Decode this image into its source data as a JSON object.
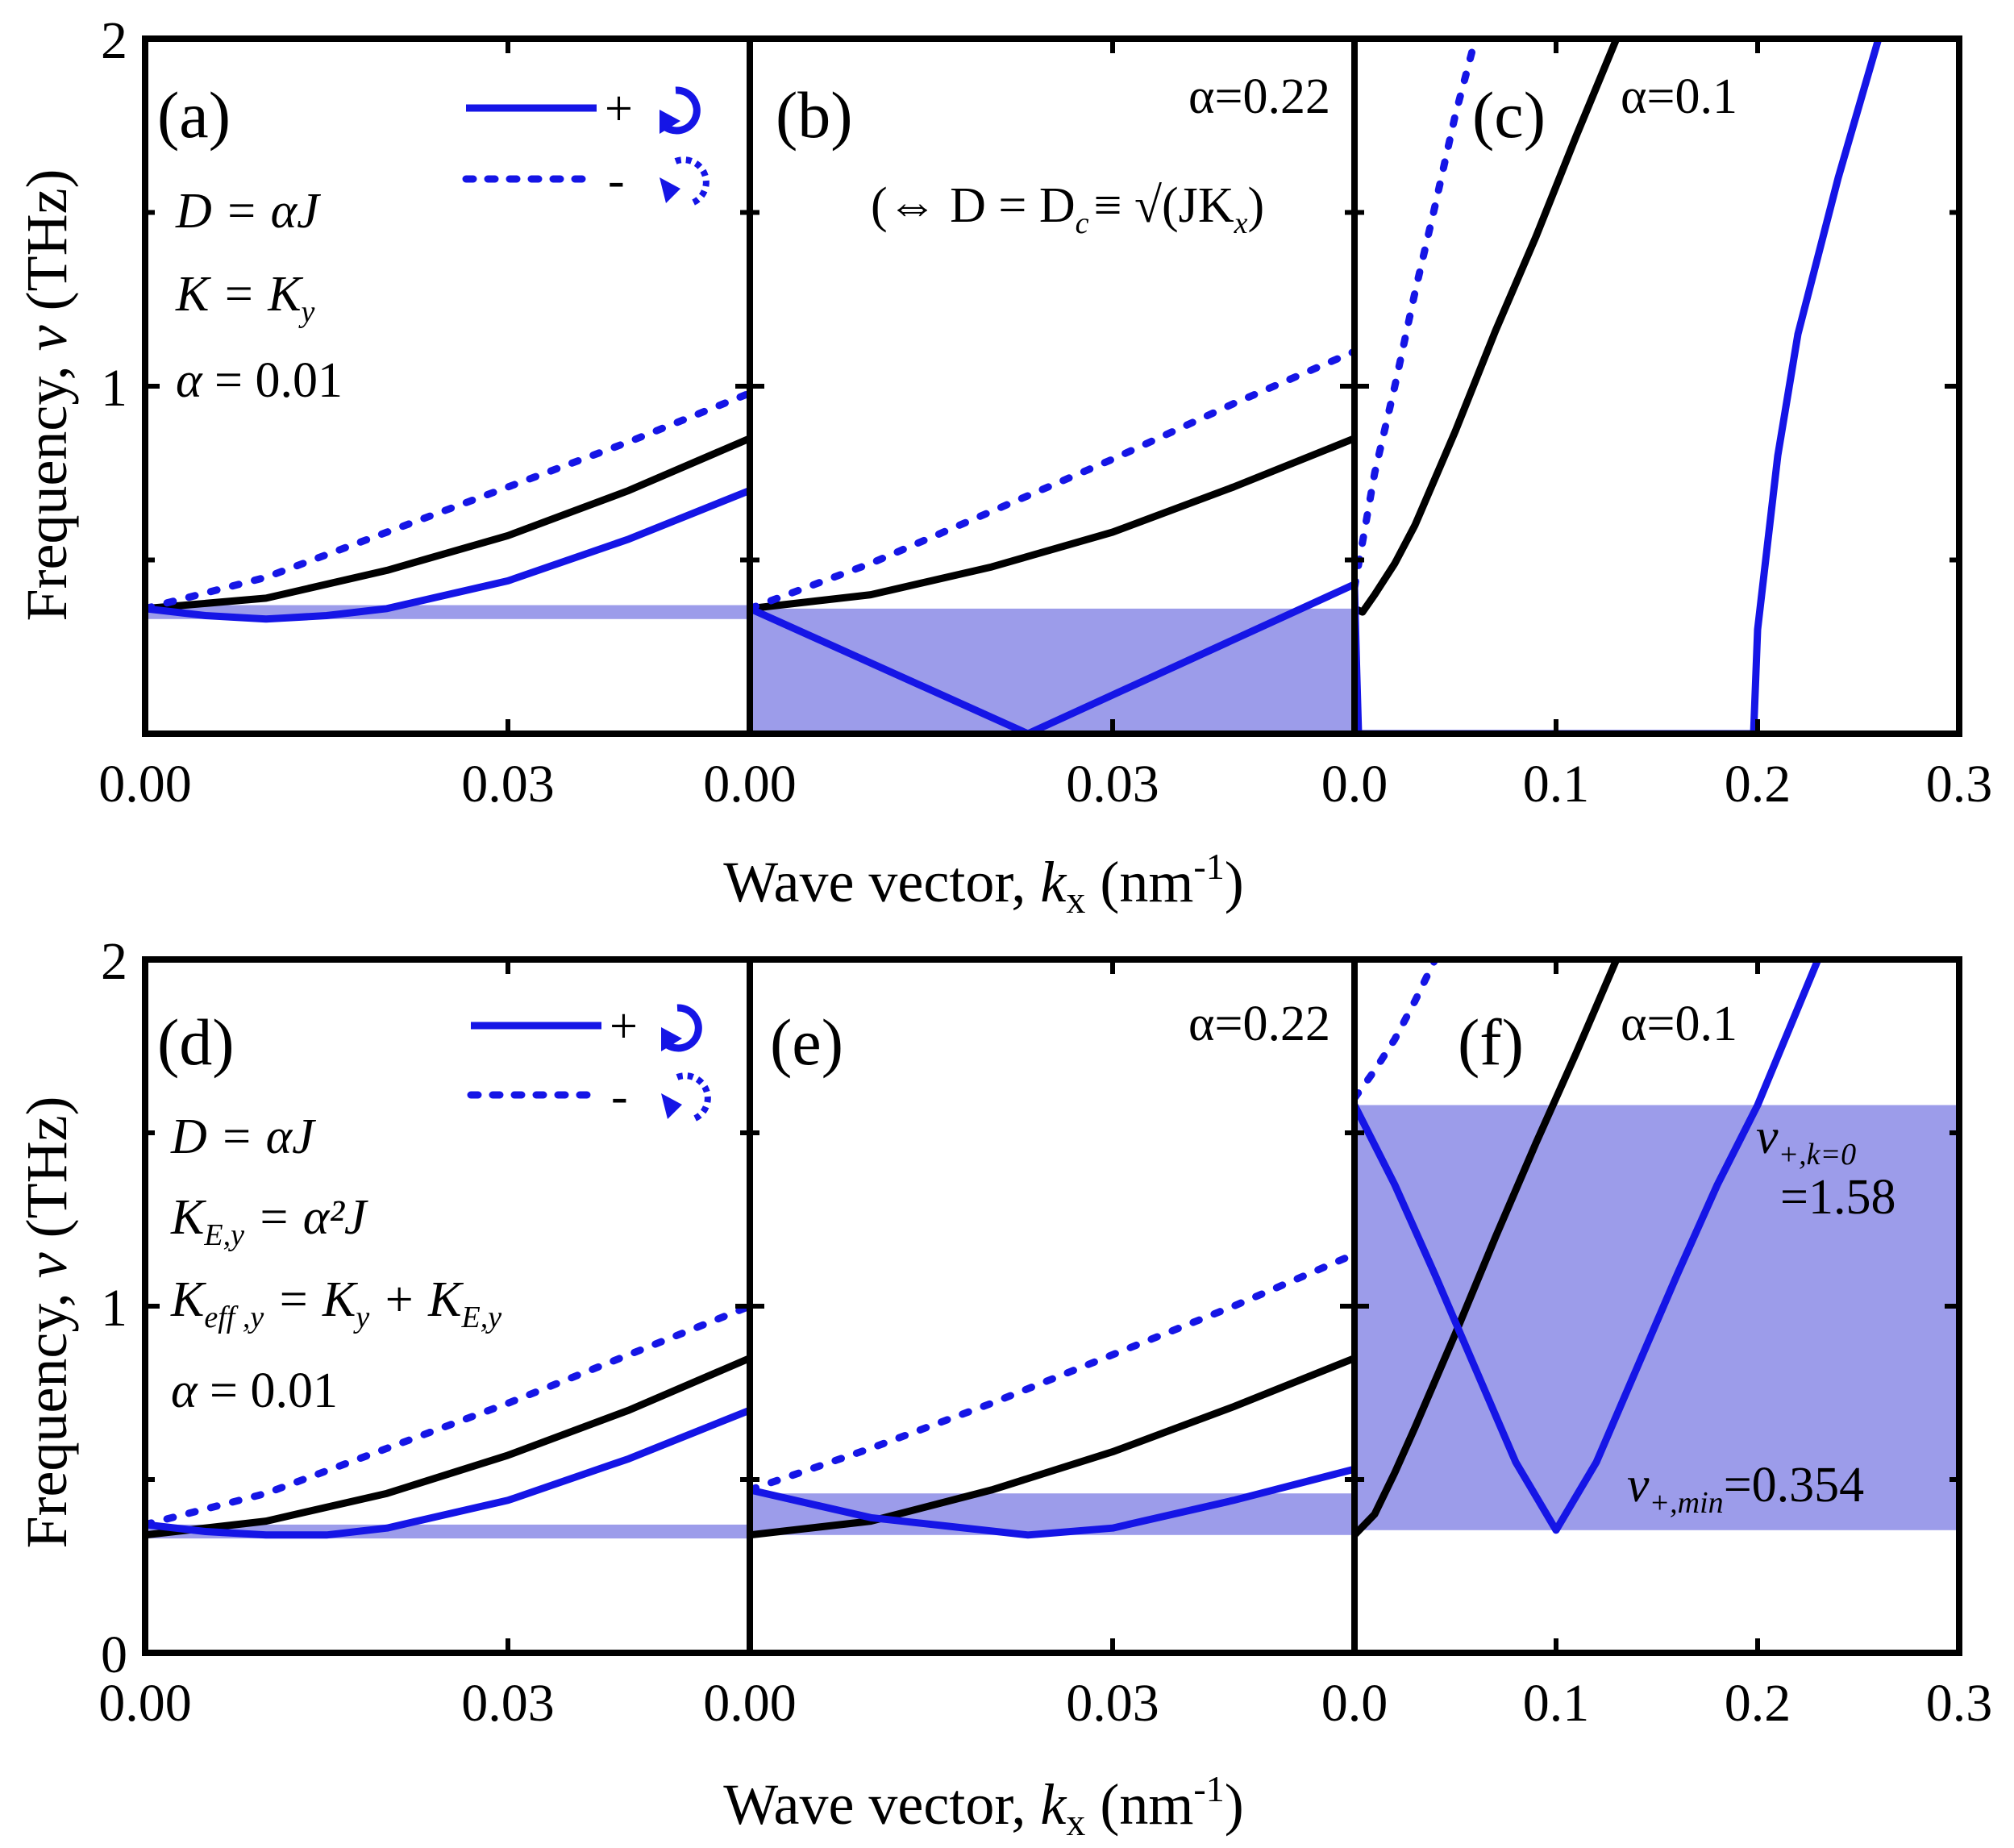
{
  "figure": {
    "ylabel": "Frequency, v (THz)",
    "ylabel_parts": {
      "prefix": "Frequency, ",
      "var": "v",
      "suffix": " (THz)"
    },
    "xlabel_parts": {
      "prefix": "Wave vector, ",
      "var": "k",
      "sub": "x",
      "unit": " (nm",
      "sup": "-1",
      "end": ")"
    },
    "colors": {
      "black": "#000000",
      "blue": "#1515e6",
      "shade": "#4a4ad8"
    }
  },
  "legend": {
    "plus": "+",
    "minus": "-"
  },
  "chart_data": [
    {
      "id": "a",
      "label": "(a)",
      "type": "line",
      "row": "top",
      "col": 0,
      "xlim": [
        0,
        0.05
      ],
      "ylim": [
        0,
        2
      ],
      "xticks": [
        {
          "v": 0,
          "t": "0.00"
        },
        {
          "v": 0.03,
          "t": "0.03"
        }
      ],
      "yticks": [
        {
          "v": 1,
          "t": "1"
        },
        {
          "v": 2,
          "t": "2"
        }
      ],
      "annotations": [
        "D = αJ",
        "K = K_y",
        "α = 0.01"
      ],
      "shaded_band": [
        0.33,
        0.37
      ],
      "series": [
        {
          "name": "black",
          "style": "solid",
          "color": "#000000",
          "x": [
            0,
            0.01,
            0.02,
            0.03,
            0.04,
            0.05
          ],
          "y": [
            0.36,
            0.39,
            0.47,
            0.57,
            0.7,
            0.85
          ]
        },
        {
          "name": "+",
          "style": "solid",
          "color": "#1515e6",
          "x": [
            0,
            0.005,
            0.01,
            0.015,
            0.02,
            0.03,
            0.04,
            0.05
          ],
          "y": [
            0.36,
            0.34,
            0.33,
            0.34,
            0.36,
            0.44,
            0.56,
            0.7
          ]
        },
        {
          "name": "-",
          "style": "dotted",
          "color": "#1515e6",
          "x": [
            0,
            0.01,
            0.02,
            0.03,
            0.04,
            0.05
          ],
          "y": [
            0.36,
            0.45,
            0.58,
            0.71,
            0.84,
            0.98
          ]
        }
      ]
    },
    {
      "id": "b",
      "label": "(b)",
      "type": "line",
      "row": "top",
      "col": 1,
      "xlim": [
        0,
        0.05
      ],
      "ylim": [
        0,
        2
      ],
      "xticks": [
        {
          "v": 0,
          "t": "0.00"
        },
        {
          "v": 0.03,
          "t": "0.03"
        }
      ],
      "alpha_text": "α=0.22",
      "note_text": "(⇔ D = D",
      "note_sub": "c",
      "note_rest": "≡ √(JK",
      "note_sub2": "x",
      "note_end": ")",
      "shaded_band": [
        0,
        0.36
      ],
      "series": [
        {
          "name": "black",
          "style": "solid",
          "color": "#000000",
          "x": [
            0,
            0.01,
            0.02,
            0.03,
            0.04,
            0.05
          ],
          "y": [
            0.36,
            0.4,
            0.48,
            0.58,
            0.71,
            0.85
          ]
        },
        {
          "name": "+",
          "style": "solid",
          "color": "#1515e6",
          "x": [
            0,
            0.023,
            0.05
          ],
          "y": [
            0.36,
            0.0,
            0.43
          ]
        },
        {
          "name": "-",
          "style": "dotted",
          "color": "#1515e6",
          "x": [
            0,
            0.01,
            0.02,
            0.03,
            0.04,
            0.05
          ],
          "y": [
            0.36,
            0.49,
            0.64,
            0.79,
            0.95,
            1.1
          ]
        }
      ]
    },
    {
      "id": "c",
      "label": "(c)",
      "type": "line",
      "row": "top",
      "col": 2,
      "xlim": [
        0,
        0.3
      ],
      "ylim": [
        0,
        2
      ],
      "xticks": [
        {
          "v": 0,
          "t": "0.0"
        },
        {
          "v": 0.1,
          "t": "0.1"
        },
        {
          "v": 0.2,
          "t": "0.2"
        },
        {
          "v": 0.3,
          "t": "0.3"
        }
      ],
      "alpha_text": "α=0.1",
      "shaded_band": null,
      "series": [
        {
          "name": "black",
          "style": "solid",
          "color": "#000000",
          "x": [
            0,
            0.004,
            0.01,
            0.02,
            0.03,
            0.05,
            0.07,
            0.09,
            0.11,
            0.13
          ],
          "y": [
            0.36,
            0.35,
            0.4,
            0.49,
            0.6,
            0.87,
            1.16,
            1.43,
            1.72,
            2.0
          ]
        },
        {
          "name": "+",
          "style": "solid",
          "color": "#1515e6",
          "x": [
            0,
            0.001,
            0.002,
            0.1,
            0.198,
            0.2,
            0.21,
            0.22,
            0.24,
            0.26
          ],
          "y": [
            0.42,
            0.2,
            0.0,
            0.0,
            0.0,
            0.3,
            0.8,
            1.15,
            1.6,
            2.0
          ]
        },
        {
          "name": "-",
          "style": "dotted",
          "color": "#1515e6",
          "x": [
            0,
            0.01,
            0.02,
            0.03,
            0.04,
            0.05,
            0.06
          ],
          "y": [
            0.42,
            0.75,
            1.0,
            1.27,
            1.52,
            1.78,
            2.0
          ]
        }
      ]
    },
    {
      "id": "d",
      "label": "(d)",
      "type": "line",
      "row": "bottom",
      "col": 0,
      "xlim": [
        0,
        0.05
      ],
      "ylim": [
        0,
        2
      ],
      "xticks": [
        {
          "v": 0,
          "t": "0.00"
        },
        {
          "v": 0.03,
          "t": "0.03"
        }
      ],
      "yticks": [
        {
          "v": 0,
          "t": "0"
        },
        {
          "v": 1,
          "t": "1"
        },
        {
          "v": 2,
          "t": "2"
        }
      ],
      "annotations": [
        "D = αJ",
        "K_E,y = α²J",
        "K_eff,y = K_y + K_E,y",
        "α = 0.01"
      ],
      "shaded_band": [
        0.33,
        0.37
      ],
      "series": [
        {
          "name": "black",
          "style": "solid",
          "color": "#000000",
          "x": [
            0,
            0.01,
            0.02,
            0.03,
            0.04,
            0.05
          ],
          "y": [
            0.34,
            0.38,
            0.46,
            0.57,
            0.7,
            0.85
          ]
        },
        {
          "name": "+",
          "style": "solid",
          "color": "#1515e6",
          "x": [
            0,
            0.005,
            0.01,
            0.015,
            0.02,
            0.03,
            0.04,
            0.05
          ],
          "y": [
            0.37,
            0.35,
            0.34,
            0.34,
            0.36,
            0.44,
            0.56,
            0.7
          ]
        },
        {
          "name": "-",
          "style": "dotted",
          "color": "#1515e6",
          "x": [
            0,
            0.01,
            0.02,
            0.03,
            0.04,
            0.05
          ],
          "y": [
            0.37,
            0.46,
            0.59,
            0.72,
            0.86,
            1.0
          ]
        }
      ]
    },
    {
      "id": "e",
      "label": "(e)",
      "type": "line",
      "row": "bottom",
      "col": 1,
      "xlim": [
        0,
        0.05
      ],
      "ylim": [
        0,
        2
      ],
      "xticks": [
        {
          "v": 0,
          "t": "0.00"
        },
        {
          "v": 0.03,
          "t": "0.03"
        }
      ],
      "alpha_text": "α=0.22",
      "shaded_band": [
        0.34,
        0.46
      ],
      "series": [
        {
          "name": "black",
          "style": "solid",
          "color": "#000000",
          "x": [
            0,
            0.01,
            0.02,
            0.03,
            0.04,
            0.05
          ],
          "y": [
            0.34,
            0.38,
            0.47,
            0.58,
            0.71,
            0.85
          ]
        },
        {
          "name": "+",
          "style": "solid",
          "color": "#1515e6",
          "x": [
            0,
            0.01,
            0.023,
            0.03,
            0.04,
            0.05
          ],
          "y": [
            0.47,
            0.39,
            0.34,
            0.36,
            0.44,
            0.53
          ]
        },
        {
          "name": "-",
          "style": "dotted",
          "color": "#1515e6",
          "x": [
            0,
            0.01,
            0.02,
            0.03,
            0.04,
            0.05
          ],
          "y": [
            0.47,
            0.59,
            0.72,
            0.86,
            1.0,
            1.15
          ]
        }
      ]
    },
    {
      "id": "f",
      "label": "(f)",
      "type": "line",
      "row": "bottom",
      "col": 2,
      "xlim": [
        0,
        0.3
      ],
      "ylim": [
        0,
        2
      ],
      "xticks": [
        {
          "v": 0,
          "t": "0.0"
        },
        {
          "v": 0.1,
          "t": "0.1"
        },
        {
          "v": 0.2,
          "t": "0.2"
        },
        {
          "v": 0.3,
          "t": "0.3"
        }
      ],
      "alpha_text": "α=0.1",
      "shaded_band": [
        0.354,
        1.58
      ],
      "labels": {
        "vk0_var": "v",
        "vk0_sub": "+,k=0",
        "vk0_val": "=1.58",
        "vmin_var": "v",
        "vmin_sub": "+,min",
        "vmin_val": "=0.354"
      },
      "series": [
        {
          "name": "black",
          "style": "solid",
          "color": "#000000",
          "x": [
            0,
            0.01,
            0.02,
            0.03,
            0.05,
            0.07,
            0.09,
            0.11,
            0.13
          ],
          "y": [
            0.34,
            0.4,
            0.52,
            0.65,
            0.92,
            1.2,
            1.47,
            1.73,
            2.0
          ]
        },
        {
          "name": "+",
          "style": "solid",
          "color": "#1515e6",
          "x": [
            0,
            0.02,
            0.04,
            0.06,
            0.08,
            0.1,
            0.12,
            0.14,
            0.16,
            0.18,
            0.2,
            0.23
          ],
          "y": [
            1.58,
            1.35,
            1.09,
            0.82,
            0.55,
            0.354,
            0.55,
            0.82,
            1.09,
            1.35,
            1.58,
            2.0
          ]
        },
        {
          "name": "-",
          "style": "dotted",
          "color": "#1515e6",
          "x": [
            0,
            0.01,
            0.02,
            0.03,
            0.04
          ],
          "y": [
            1.6,
            1.68,
            1.77,
            1.88,
            2.0
          ]
        }
      ]
    }
  ]
}
